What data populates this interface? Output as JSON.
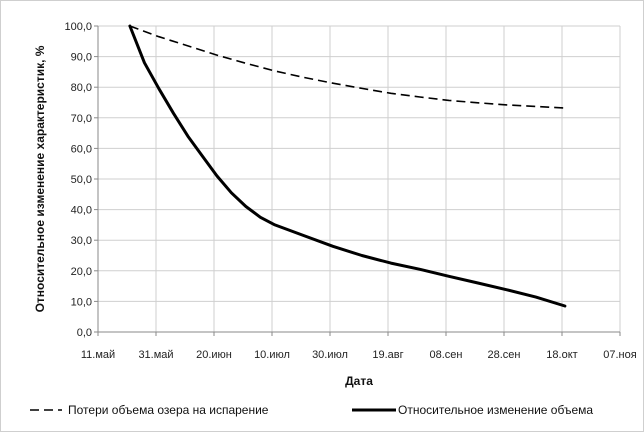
{
  "chart_data": {
    "type": "line",
    "title": "",
    "xlabel": "Дата",
    "ylabel": "Относительное изменение характеристик, %",
    "ylim": [
      0,
      100
    ],
    "yticks": [
      "0,0",
      "10,0",
      "20,0",
      "30,0",
      "40,0",
      "50,0",
      "60,0",
      "70,0",
      "80,0",
      "90,0",
      "100,0"
    ],
    "xticks": [
      "11.май",
      "31.май",
      "20.июн",
      "10.июл",
      "30.июл",
      "19.авг",
      "08.сен",
      "28.сен",
      "18.окт",
      "07.ноя"
    ],
    "xlim": [
      "2016-05-11",
      "2016-11-07"
    ],
    "grid": true,
    "legend_position": "bottom",
    "series": [
      {
        "name": "Потери объема озера на испарение",
        "style": "dashed",
        "color": "#000000",
        "points": [
          [
            "2016-05-22",
            100.0
          ],
          [
            "2016-06-01",
            96.5
          ],
          [
            "2016-06-11",
            93.5
          ],
          [
            "2016-06-21",
            90.5
          ],
          [
            "2016-07-01",
            87.8
          ],
          [
            "2016-07-11",
            85.3
          ],
          [
            "2016-07-21",
            83.2
          ],
          [
            "2016-07-31",
            81.3
          ],
          [
            "2016-08-10",
            79.6
          ],
          [
            "2016-08-20",
            78.0
          ],
          [
            "2016-08-30",
            76.8
          ],
          [
            "2016-09-09",
            75.7
          ],
          [
            "2016-09-19",
            74.9
          ],
          [
            "2016-09-29",
            74.2
          ],
          [
            "2016-10-09",
            73.7
          ],
          [
            "2016-10-19",
            73.2
          ]
        ]
      },
      {
        "name": "Относительное изменение объема",
        "style": "solid",
        "color": "#000000",
        "points": [
          [
            "2016-05-22",
            100.0
          ],
          [
            "2016-05-27",
            88.0
          ],
          [
            "2016-06-01",
            79.5
          ],
          [
            "2016-06-06",
            71.5
          ],
          [
            "2016-06-11",
            64.0
          ],
          [
            "2016-06-16",
            57.5
          ],
          [
            "2016-06-21",
            51.0
          ],
          [
            "2016-06-26",
            45.5
          ],
          [
            "2016-07-01",
            41.0
          ],
          [
            "2016-07-06",
            37.5
          ],
          [
            "2016-07-11",
            35.0
          ],
          [
            "2016-07-21",
            31.5
          ],
          [
            "2016-07-31",
            28.0
          ],
          [
            "2016-08-10",
            25.0
          ],
          [
            "2016-08-20",
            22.5
          ],
          [
            "2016-08-30",
            20.5
          ],
          [
            "2016-09-09",
            18.2
          ],
          [
            "2016-09-19",
            16.0
          ],
          [
            "2016-09-29",
            13.8
          ],
          [
            "2016-10-09",
            11.4
          ],
          [
            "2016-10-19",
            8.5
          ]
        ]
      }
    ]
  }
}
